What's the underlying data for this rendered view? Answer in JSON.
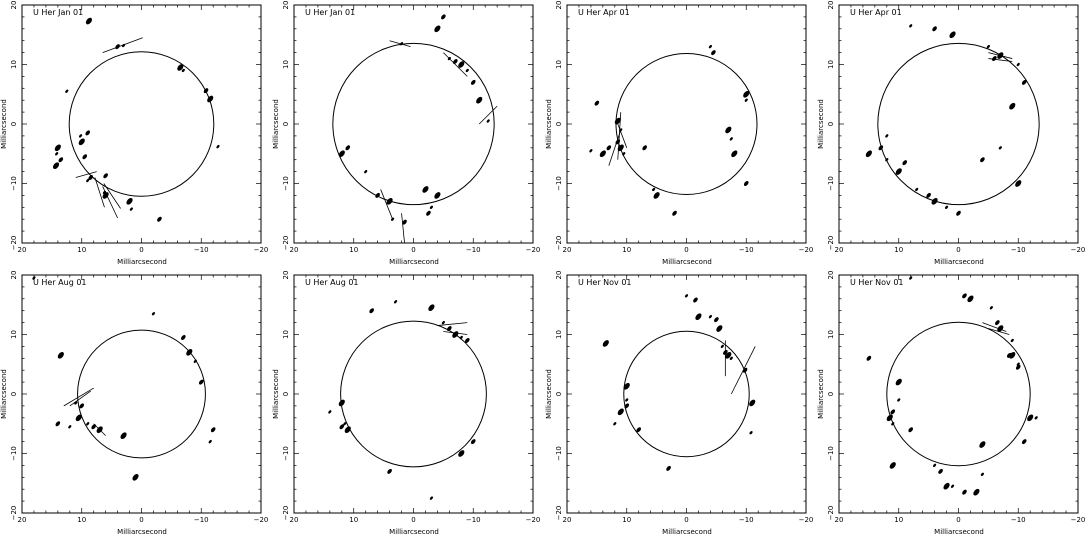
{
  "chart_data": [
    {
      "type": "scatter",
      "title": "U Her Jan 01",
      "xlabel": "Milliarcsecond",
      "ylabel": "Milliarcsecond",
      "xlim": [
        20,
        -20
      ],
      "ylim": [
        -20,
        20
      ],
      "ticks": [
        20,
        10,
        0,
        -10,
        -20
      ],
      "circle_radius": 12.1,
      "spots": [
        [
          3,
          13.2
        ],
        [
          4,
          13
        ],
        [
          -6.5,
          9.5
        ],
        [
          -7,
          9
        ],
        [
          -10.8,
          5.6
        ],
        [
          -11.5,
          4.2
        ],
        [
          -12.8,
          -3.8
        ],
        [
          9,
          -1.5
        ],
        [
          10,
          -3
        ],
        [
          10.2,
          -2
        ],
        [
          9.5,
          -5.5
        ],
        [
          14,
          -4
        ],
        [
          14.2,
          -5
        ],
        [
          13.5,
          -6
        ],
        [
          14.3,
          -7
        ],
        [
          9,
          -9.5
        ],
        [
          8.5,
          -9
        ],
        [
          6,
          -12
        ],
        [
          6.2,
          -11.5
        ],
        [
          6,
          -8.7
        ],
        [
          2,
          -13
        ],
        [
          1.7,
          -14.3
        ],
        [
          -3,
          -16
        ],
        [
          8.8,
          17.3
        ],
        [
          12.5,
          5.5
        ]
      ],
      "vectors": [
        [
          [
            6.5,
            12
          ],
          [
            -0.2,
            14.5
          ]
        ],
        [
          [
            11,
            -9
          ],
          [
            7.5,
            -8
          ]
        ],
        [
          [
            6.3,
            -10
          ],
          [
            3.5,
            -14.2
          ]
        ],
        [
          [
            6.5,
            -10.5
          ],
          [
            4,
            -15.8
          ]
        ],
        [
          [
            7.8,
            -9
          ],
          [
            6.2,
            -14
          ]
        ]
      ]
    },
    {
      "type": "scatter",
      "title": "U Her Jan 01",
      "xlabel": "Milliarcsecond",
      "ylabel": "Milliarcsecond",
      "xlim": [
        20,
        -20
      ],
      "ylim": [
        -20,
        20
      ],
      "ticks": [
        20,
        10,
        0,
        -10,
        -20
      ],
      "circle_radius": 13.5,
      "spots": [
        [
          2,
          13.5
        ],
        [
          -5,
          18
        ],
        [
          -4,
          16
        ],
        [
          -6,
          11
        ],
        [
          -7,
          10.5
        ],
        [
          -8,
          10
        ],
        [
          -9,
          9
        ],
        [
          -10,
          7
        ],
        [
          -11,
          4
        ],
        [
          -12.5,
          0.5
        ],
        [
          11,
          -4
        ],
        [
          12,
          -5
        ],
        [
          8,
          -8
        ],
        [
          6,
          -12
        ],
        [
          4,
          -13
        ],
        [
          3.5,
          -16
        ],
        [
          1.5,
          -16.5
        ],
        [
          -2,
          -11
        ],
        [
          -3,
          -14
        ],
        [
          -2.5,
          -15
        ],
        [
          -4,
          -12
        ]
      ],
      "vectors": [
        [
          [
            4,
            14
          ],
          [
            0.5,
            13
          ]
        ],
        [
          [
            -5,
            12
          ],
          [
            -9,
            8
          ]
        ],
        [
          [
            -11,
            0
          ],
          [
            -14,
            3
          ]
        ],
        [
          [
            5.5,
            -11
          ],
          [
            3.5,
            -16
          ]
        ],
        [
          [
            2,
            -15
          ],
          [
            1.5,
            -20
          ]
        ]
      ]
    },
    {
      "type": "scatter",
      "title": "U Her Apr 01",
      "xlabel": "Milliarcsecond",
      "ylabel": "Milliarcsecond",
      "xlim": [
        20,
        -20
      ],
      "ylim": [
        -20,
        20
      ],
      "ticks": [
        20,
        10,
        0,
        -10,
        -20
      ],
      "circle_radius": 11.8,
      "spots": [
        [
          -4,
          13
        ],
        [
          -4.5,
          12
        ],
        [
          -10,
          5
        ],
        [
          -10,
          4
        ],
        [
          15,
          3.5
        ],
        [
          11.5,
          0.5
        ],
        [
          11,
          -1
        ],
        [
          11.5,
          -3
        ],
        [
          11,
          -4
        ],
        [
          10.5,
          -5
        ],
        [
          13,
          -4
        ],
        [
          14,
          -5
        ],
        [
          16,
          -4.5
        ],
        [
          7,
          -4
        ],
        [
          -7,
          -1
        ],
        [
          -7.5,
          -2.5
        ],
        [
          -10,
          -10
        ],
        [
          5,
          -12
        ],
        [
          5.5,
          -11
        ],
        [
          2,
          -15
        ],
        [
          -8,
          -5
        ]
      ],
      "vectors": [
        [
          [
            11,
            -1
          ],
          [
            13,
            -7
          ]
        ],
        [
          [
            11.5,
            0
          ],
          [
            10,
            -4
          ]
        ],
        [
          [
            11,
            2
          ],
          [
            11.5,
            -6
          ]
        ]
      ]
    },
    {
      "type": "scatter",
      "title": "U Her Apr 01",
      "xlabel": "Milliarcsecond",
      "ylabel": "Milliarcsecond",
      "xlim": [
        20,
        -20
      ],
      "ylim": [
        -20,
        20
      ],
      "ticks": [
        20,
        10,
        0,
        -10,
        -20
      ],
      "circle_radius": 13.5,
      "spots": [
        [
          8,
          16.5
        ],
        [
          4,
          16
        ],
        [
          1,
          15
        ],
        [
          -5,
          13
        ],
        [
          -6,
          11
        ],
        [
          -7,
          11.5
        ],
        [
          -10,
          10
        ],
        [
          -11,
          7
        ],
        [
          -9,
          3
        ],
        [
          12,
          -2
        ],
        [
          13,
          -4
        ],
        [
          15,
          -5
        ],
        [
          12,
          -6
        ],
        [
          9,
          -6.5
        ],
        [
          10,
          -8
        ],
        [
          7,
          -11
        ],
        [
          5,
          -12
        ],
        [
          4,
          -13
        ],
        [
          2,
          -14
        ],
        [
          0,
          -15
        ],
        [
          -10,
          -10
        ],
        [
          -7,
          -4
        ],
        [
          -4,
          -6
        ]
      ],
      "vectors": [
        [
          [
            -5,
            12
          ],
          [
            -9,
            11
          ]
        ],
        [
          [
            -5,
            11
          ],
          [
            -9,
            10.5
          ]
        ]
      ]
    },
    {
      "type": "scatter",
      "title": "U Her Aug 01",
      "xlabel": "Milliarcsecond",
      "ylabel": "Milliarcsecond",
      "xlim": [
        20,
        -20
      ],
      "ylim": [
        -20,
        20
      ],
      "ticks": [
        20,
        10,
        0,
        -10,
        -20
      ],
      "circle_radius": 10.7,
      "spots": [
        [
          -2,
          13.5
        ],
        [
          -7,
          9.5
        ],
        [
          -8,
          7
        ],
        [
          -9,
          5.5
        ],
        [
          -10,
          2
        ],
        [
          13.5,
          6.5
        ],
        [
          11,
          -1.5
        ],
        [
          10,
          -2
        ],
        [
          10.5,
          -4
        ],
        [
          9,
          -5
        ],
        [
          8,
          -5.5
        ],
        [
          7,
          -6
        ],
        [
          12,
          -5.5
        ],
        [
          14,
          -5
        ],
        [
          3,
          -7
        ],
        [
          -11.5,
          -8
        ],
        [
          -12,
          -6
        ],
        [
          1,
          -14
        ],
        [
          18,
          19.5
        ]
      ],
      "vectors": [
        [
          [
            13,
            -2
          ],
          [
            8,
            1
          ]
        ],
        [
          [
            12,
            -2
          ],
          [
            8.5,
            0.5
          ]
        ],
        [
          [
            8,
            -5
          ],
          [
            6,
            -7
          ]
        ]
      ]
    },
    {
      "type": "scatter",
      "title": "U Her Aug 01",
      "xlabel": "Milliarcsecond",
      "ylabel": "Milliarcsecond",
      "xlim": [
        20,
        -20
      ],
      "ylim": [
        -20,
        20
      ],
      "ticks": [
        20,
        10,
        0,
        -10,
        -20
      ],
      "circle_radius": 12.2,
      "spots": [
        [
          3,
          15.5
        ],
        [
          7,
          14
        ],
        [
          -3,
          14.5
        ],
        [
          -5,
          12
        ],
        [
          -6,
          11
        ],
        [
          -7,
          10
        ],
        [
          -8,
          9.5
        ],
        [
          -9,
          9
        ],
        [
          12,
          -1.5
        ],
        [
          11.5,
          -5
        ],
        [
          12,
          -5.5
        ],
        [
          11,
          -6
        ],
        [
          14,
          -3
        ],
        [
          -10,
          -8
        ],
        [
          -8,
          -10
        ],
        [
          -3,
          -17.5
        ],
        [
          4,
          -13
        ]
      ],
      "vectors": [
        [
          [
            -4,
            11.5
          ],
          [
            -9,
            12
          ]
        ],
        [
          [
            -5,
            10.5
          ],
          [
            -9,
            10
          ]
        ]
      ]
    },
    {
      "type": "scatter",
      "title": "U Her Nov 01",
      "xlabel": "Milliarcsecond",
      "ylabel": "Milliarcsecond",
      "xlim": [
        20,
        -20
      ],
      "ylim": [
        -20,
        20
      ],
      "ticks": [
        20,
        10,
        0,
        -10,
        -20
      ],
      "circle_radius": 10.5,
      "spots": [
        [
          0,
          16.5
        ],
        [
          -1.5,
          15.8
        ],
        [
          -2,
          13
        ],
        [
          -4,
          13
        ],
        [
          -5,
          12.5
        ],
        [
          -5.5,
          11
        ],
        [
          -6,
          8
        ],
        [
          -6.5,
          7
        ],
        [
          -7,
          6.5
        ],
        [
          -7.5,
          6
        ],
        [
          -9.8,
          4
        ],
        [
          10,
          1.3
        ],
        [
          10,
          -1
        ],
        [
          10,
          -2
        ],
        [
          11,
          -3
        ],
        [
          12,
          -5
        ],
        [
          8,
          -6
        ],
        [
          -11,
          -1.5
        ],
        [
          -10.8,
          -6.5
        ],
        [
          3,
          -12.5
        ],
        [
          13.5,
          8.5
        ]
      ],
      "vectors": [
        [
          [
            -7.5,
            0
          ],
          [
            -11.5,
            8
          ]
        ],
        [
          [
            -6.5,
            9
          ],
          [
            -6.5,
            3
          ]
        ]
      ]
    },
    {
      "type": "scatter",
      "title": "U Her Nov 01",
      "xlabel": "Milliarcsecond",
      "ylabel": "Milliarcsecond",
      "xlim": [
        20,
        -20
      ],
      "ylim": [
        -20,
        20
      ],
      "ticks": [
        20,
        10,
        0,
        -10,
        -20
      ],
      "circle_radius": 12.0,
      "spots": [
        [
          8,
          19.5
        ],
        [
          -1,
          16.5
        ],
        [
          -2,
          16
        ],
        [
          -5.5,
          14.5
        ],
        [
          -6.5,
          12
        ],
        [
          -7,
          11
        ],
        [
          -9,
          9
        ],
        [
          -8.5,
          6.5
        ],
        [
          -9,
          6.5
        ],
        [
          -10,
          5
        ],
        [
          -10,
          4.5
        ],
        [
          10,
          2
        ],
        [
          10,
          -1
        ],
        [
          11,
          -3
        ],
        [
          11.5,
          -4
        ],
        [
          11,
          -5
        ],
        [
          8,
          -6
        ],
        [
          -12,
          -4
        ],
        [
          -13,
          -4
        ],
        [
          -11,
          -8
        ],
        [
          -4,
          -8.5
        ],
        [
          4,
          -12
        ],
        [
          3,
          -13
        ],
        [
          2,
          -15.5
        ],
        [
          1,
          -15.5
        ],
        [
          -1,
          -16.5
        ],
        [
          -3,
          -16.5
        ],
        [
          -4,
          -13.5
        ],
        [
          15,
          6
        ],
        [
          11,
          -12
        ]
      ],
      "vectors": [
        [
          [
            -4,
            12
          ],
          [
            -8,
            10.5
          ]
        ],
        [
          [
            -5,
            11
          ],
          [
            -8.5,
            10
          ]
        ]
      ]
    }
  ]
}
